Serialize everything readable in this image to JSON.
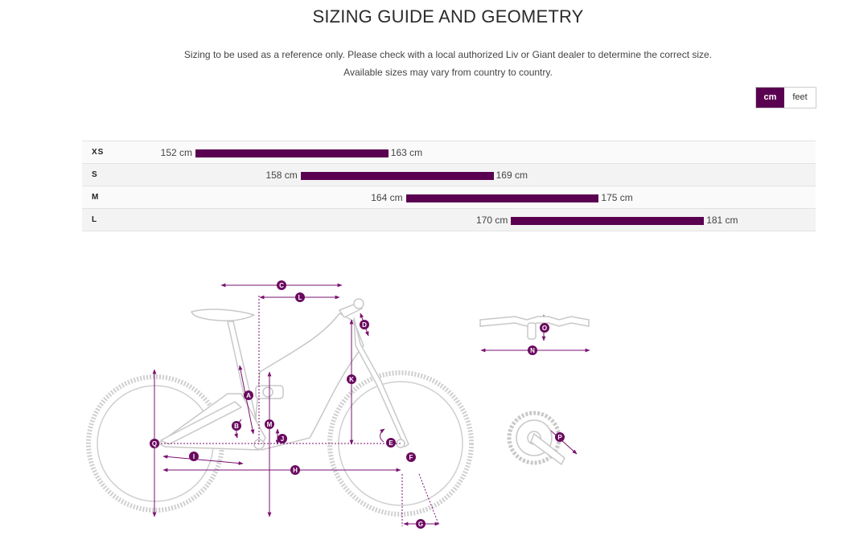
{
  "header": {
    "title": "SIZING GUIDE AND GEOMETRY",
    "subtitle_line1": "Sizing to be used as a reference only. Please check with a local authorized Liv or Giant dealer to determine the correct size.",
    "subtitle_line2": "Available sizes may vary from country to country."
  },
  "unit_toggle": {
    "options": [
      "cm",
      "feet"
    ],
    "selected": "cm"
  },
  "sizes": [
    {
      "label": "XS",
      "min": "152 cm",
      "max": "163 cm",
      "min_value": 152,
      "max_value": 163
    },
    {
      "label": "S",
      "min": "158 cm",
      "max": "169 cm",
      "min_value": 158,
      "max_value": 169
    },
    {
      "label": "M",
      "min": "164 cm",
      "max": "175 cm",
      "min_value": 164,
      "max_value": 175
    },
    {
      "label": "L",
      "min": "170 cm",
      "max": "181 cm",
      "min_value": 170,
      "max_value": 181
    }
  ],
  "geometry_markers": [
    "A",
    "B",
    "C",
    "D",
    "E",
    "F",
    "G",
    "H",
    "I",
    "J",
    "K",
    "L",
    "M",
    "N",
    "O",
    "P",
    "Q"
  ],
  "colors": {
    "accent": "#5a0050",
    "frame_line": "#cccccc",
    "text": "#333333"
  }
}
